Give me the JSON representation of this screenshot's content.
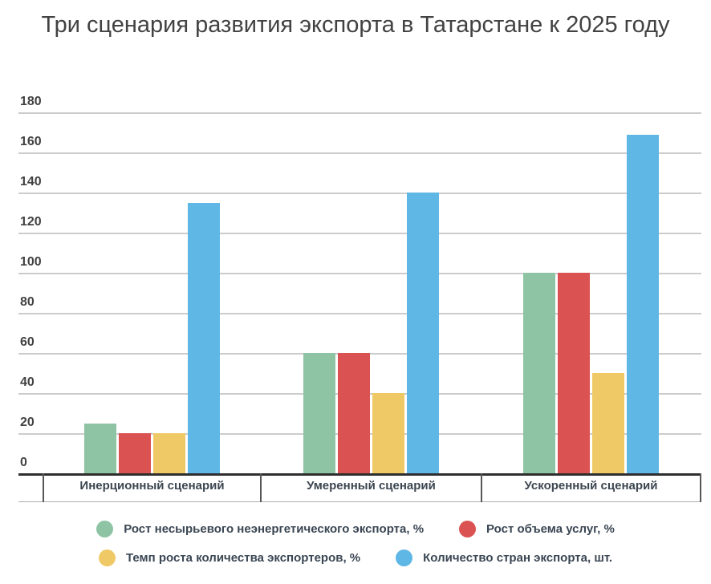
{
  "title": "Три сценария развития экспорта в Татарстане к 2025 году",
  "chart_data": {
    "type": "bar",
    "categories": [
      "Инерционный сценарий",
      "Умеренный сценарий",
      "Ускоренный сценарий"
    ],
    "series": [
      {
        "name": "Рост несырьевого неэнергетического экспорта, %",
        "color": "#8ec4a4",
        "values": [
          25,
          60,
          100
        ]
      },
      {
        "name": "Рост объема услуг, %",
        "color": "#da5352",
        "values": [
          20,
          60,
          100
        ]
      },
      {
        "name": "Темп роста количества экспортеров, %",
        "color": "#f0c967",
        "values": [
          20,
          40,
          50
        ]
      },
      {
        "name": "Количество стран экспорта, шт.",
        "color": "#5eb7e4",
        "values": [
          135,
          140,
          169
        ]
      }
    ],
    "ylim": [
      0,
      180
    ],
    "ytick_step": 20,
    "yticks": [
      0,
      20,
      40,
      60,
      80,
      100,
      120,
      140,
      160,
      180
    ],
    "xlabel": "",
    "ylabel": "",
    "grid": true,
    "legend_position": "bottom"
  },
  "colors": {
    "gridline": "#cccccc",
    "axis_line": "#2e2e2e",
    "title_text": "#424242",
    "tick_text": "#424242",
    "category_text": "#3c4650",
    "legend_text": "#3a4653"
  }
}
